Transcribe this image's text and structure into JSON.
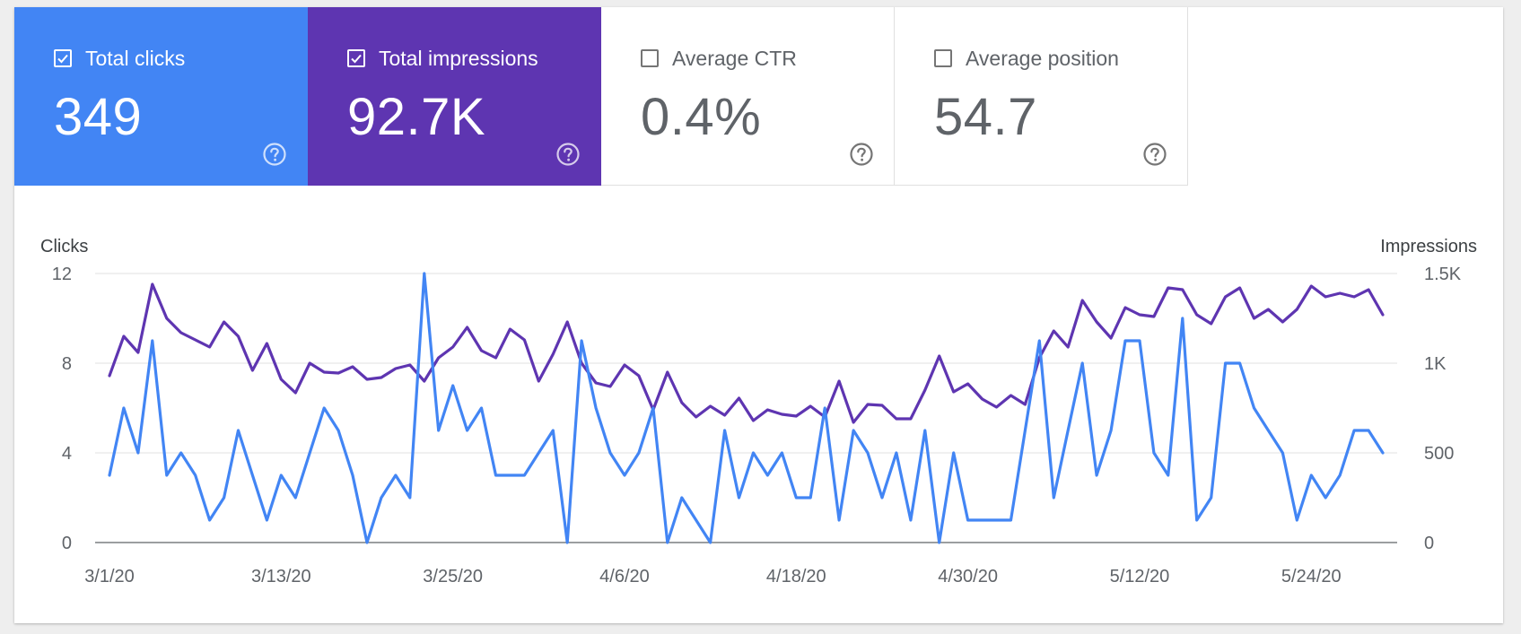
{
  "cards": [
    {
      "label": "Total clicks",
      "value": "349",
      "checked": true,
      "bg": "#4285f4",
      "fg": "#ffffff",
      "help_icon": "help-circle-icon"
    },
    {
      "label": "Total impressions",
      "value": "92.7K",
      "checked": true,
      "bg": "#5e35b1",
      "fg": "#ffffff",
      "help_icon": "help-circle-icon"
    },
    {
      "label": "Average CTR",
      "value": "0.4%",
      "checked": false,
      "bg": "#ffffff",
      "fg": "#5f6368",
      "help_icon": "help-circle-icon"
    },
    {
      "label": "Average position",
      "value": "54.7",
      "checked": false,
      "bg": "#ffffff",
      "fg": "#5f6368",
      "help_icon": "help-circle-icon"
    }
  ],
  "chart_data": {
    "type": "line",
    "title": "",
    "left_axis_label": "Clicks",
    "right_axis_label": "Impressions",
    "left_ylim": [
      0,
      12
    ],
    "right_ylim": [
      0,
      1500
    ],
    "left_ticks": [
      "12",
      "8",
      "4",
      "0"
    ],
    "right_ticks": [
      "1.5K",
      "1K",
      "500",
      "0"
    ],
    "x_tick_labels": [
      "3/1/20",
      "3/13/20",
      "3/25/20",
      "4/6/20",
      "4/18/20",
      "4/30/20",
      "5/12/20",
      "5/24/20"
    ],
    "grid": true,
    "x_start": "3/1/20",
    "x_end": "5/31/20",
    "series": [
      {
        "name": "Total clicks",
        "axis": "left",
        "color": "#4285f4",
        "values": [
          3,
          6,
          4,
          9,
          3,
          4,
          3,
          1,
          2,
          5,
          3,
          1,
          3,
          2,
          4,
          6,
          5,
          3,
          0,
          2,
          3,
          2,
          12,
          5,
          7,
          5,
          6,
          3,
          3,
          3,
          4,
          5,
          0,
          9,
          6,
          4,
          3,
          4,
          6,
          0,
          2,
          1,
          0,
          5,
          2,
          4,
          3,
          4,
          2,
          2,
          6,
          1,
          5,
          4,
          2,
          4,
          1,
          5,
          0,
          4,
          1,
          1,
          1,
          1,
          5,
          9,
          2,
          5,
          8,
          3,
          5,
          9,
          9,
          4,
          3,
          10,
          1,
          2,
          8,
          8,
          6,
          5,
          4,
          1,
          3,
          2,
          3,
          5,
          5,
          4
        ]
      },
      {
        "name": "Total impressions",
        "axis": "right",
        "color": "#5e35b1",
        "values": [
          930,
          1150,
          1060,
          1440,
          1250,
          1170,
          1130,
          1090,
          1230,
          1150,
          960,
          1110,
          910,
          835,
          1000,
          950,
          945,
          980,
          910,
          920,
          970,
          990,
          900,
          1030,
          1090,
          1200,
          1070,
          1030,
          1190,
          1130,
          900,
          1050,
          1230,
          1000,
          890,
          870,
          990,
          930,
          740,
          950,
          780,
          700,
          760,
          710,
          805,
          680,
          740,
          715,
          705,
          760,
          700,
          900,
          670,
          770,
          765,
          690,
          690,
          850,
          1040,
          840,
          885,
          800,
          755,
          820,
          770,
          1030,
          1180,
          1090,
          1350,
          1230,
          1140,
          1310,
          1270,
          1260,
          1420,
          1410,
          1270,
          1220,
          1370,
          1420,
          1250,
          1300,
          1230,
          1300,
          1430,
          1370,
          1390,
          1370,
          1410,
          1270
        ]
      }
    ]
  }
}
